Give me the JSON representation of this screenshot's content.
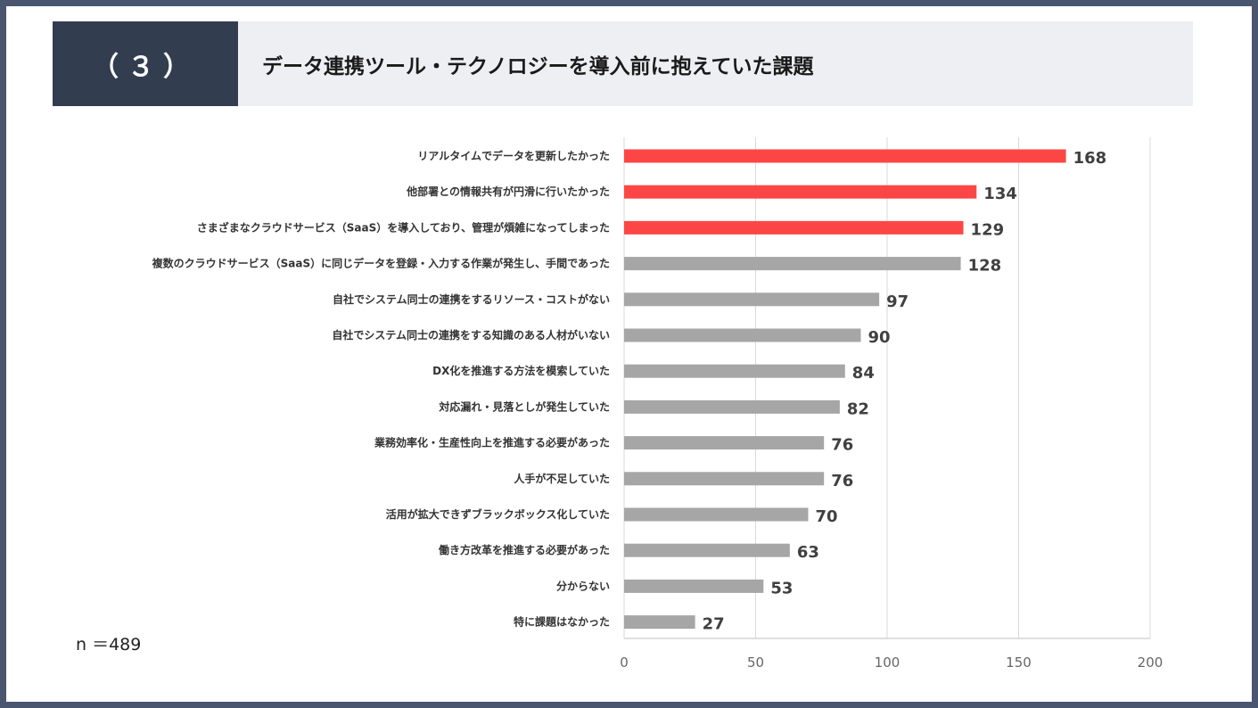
{
  "header": {
    "number": "（３）",
    "title": "データ連携ツール・テクノロジーを導入前に抱えていた課題"
  },
  "sample": "n ＝489",
  "colors": {
    "highlight": "#fc4646",
    "normal": "#a6a6a6",
    "grid": "#d9d9d9"
  },
  "chart_data": {
    "type": "bar",
    "orientation": "horizontal",
    "title": "データ連携ツール・テクノロジーを導入前に抱えていた課題",
    "categories": [
      "リアルタイムでデータを更新したかった",
      "他部署との情報共有が円滑に行いたかった",
      "さまざまなクラウドサービス（SaaS）を導入しており、管理が煩雑になってしまった",
      "複数のクラウドサービス（SaaS）に同じデータを登録・入力する作業が発生し、手間であった",
      "自社でシステム同士の連携をするリソース・コストがない",
      "自社でシステム同士の連携をする知識のある人材がいない",
      "DX化を推進する方法を模索していた",
      "対応漏れ・見落としが発生していた",
      "業務効率化・生産性向上を推進する必要があった",
      "人手が不足していた",
      "活用が拡大できずブラックボックス化していた",
      "働き方改革を推進する必要があった",
      "分からない",
      "特に課題はなかった"
    ],
    "values": [
      168,
      134,
      129,
      128,
      97,
      90,
      84,
      82,
      76,
      76,
      70,
      63,
      53,
      27
    ],
    "highlighted": [
      true,
      true,
      true,
      false,
      false,
      false,
      false,
      false,
      false,
      false,
      false,
      false,
      false,
      false
    ],
    "xlim": [
      0,
      200
    ],
    "xticks": [
      0,
      50,
      100,
      150,
      200
    ],
    "grid": true
  }
}
